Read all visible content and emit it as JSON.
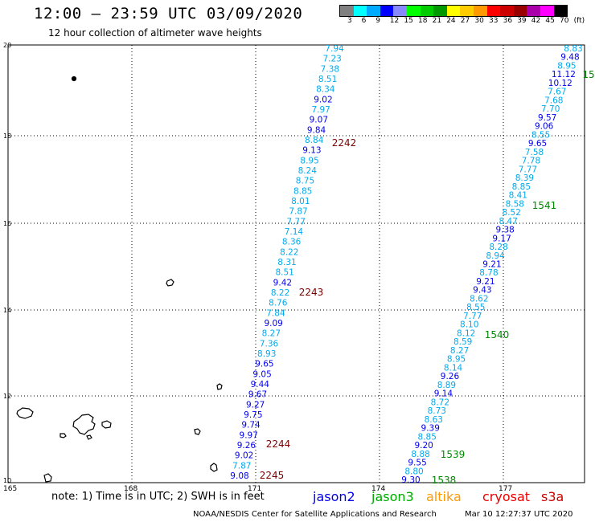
{
  "header": {
    "title": "12:00 – 23:59 UTC 03/09/2020",
    "subtitle": "12 hour collection of altimeter wave heights"
  },
  "legend": {
    "labels": [
      "3",
      "6",
      "9",
      "12",
      "15",
      "18",
      "21",
      "24",
      "27",
      "30",
      "33",
      "36",
      "39",
      "42",
      "45",
      "70",
      "(ft)"
    ],
    "colors": [
      "#808080",
      "#00ffff",
      "#00aaff",
      "#0000ff",
      "#8888ff",
      "#00ff00",
      "#00cc00",
      "#009900",
      "#ffff00",
      "#ffcc00",
      "#ff9900",
      "#ff0000",
      "#cc0000",
      "#990000",
      "#aa00aa",
      "#ff00ff",
      "#000000"
    ]
  },
  "axes": {
    "x_ticks": [
      "165",
      "168",
      "171",
      "174",
      "177"
    ],
    "y_ticks": [
      "20",
      "18",
      "16",
      "14",
      "12",
      "10"
    ]
  },
  "track_colors": {
    "cyan": "#00aaee",
    "blue": "#0000ee"
  },
  "track_left": [
    {
      "v": "7.94",
      "c": "cyan"
    },
    {
      "v": "7.23",
      "c": "cyan"
    },
    {
      "v": "7.38",
      "c": "cyan"
    },
    {
      "v": "8.51",
      "c": "cyan"
    },
    {
      "v": "8.34",
      "c": "cyan"
    },
    {
      "v": "9.02",
      "c": "blue"
    },
    {
      "v": "7.97",
      "c": "cyan"
    },
    {
      "v": "9.07",
      "c": "blue"
    },
    {
      "v": "9.84",
      "c": "blue"
    },
    {
      "v": "8.84",
      "c": "cyan"
    },
    {
      "v": "9.13",
      "c": "blue"
    },
    {
      "v": "8.95",
      "c": "cyan"
    },
    {
      "v": "8.24",
      "c": "cyan"
    },
    {
      "v": "8.75",
      "c": "cyan"
    },
    {
      "v": "8.85",
      "c": "cyan"
    },
    {
      "v": "8.01",
      "c": "cyan"
    },
    {
      "v": "7.87",
      "c": "cyan"
    },
    {
      "v": "7.77",
      "c": "cyan"
    },
    {
      "v": "7.14",
      "c": "cyan"
    },
    {
      "v": "8.36",
      "c": "cyan"
    },
    {
      "v": "8.22",
      "c": "cyan"
    },
    {
      "v": "8.31",
      "c": "cyan"
    },
    {
      "v": "8.51",
      "c": "cyan"
    },
    {
      "v": "9.42",
      "c": "blue"
    },
    {
      "v": "8.22",
      "c": "cyan"
    },
    {
      "v": "8.76",
      "c": "cyan"
    },
    {
      "v": "7.84",
      "c": "cyan"
    },
    {
      "v": "9.09",
      "c": "blue"
    },
    {
      "v": "8.27",
      "c": "cyan"
    },
    {
      "v": "7.36",
      "c": "cyan"
    },
    {
      "v": "8.93",
      "c": "cyan"
    },
    {
      "v": "9.65",
      "c": "blue"
    },
    {
      "v": "9.05",
      "c": "blue"
    },
    {
      "v": "9.44",
      "c": "blue"
    },
    {
      "v": "9.67",
      "c": "blue"
    },
    {
      "v": "9.27",
      "c": "blue"
    },
    {
      "v": "9.75",
      "c": "blue"
    },
    {
      "v": "9.74",
      "c": "blue"
    },
    {
      "v": "9.97",
      "c": "blue"
    },
    {
      "v": "9.26",
      "c": "blue"
    },
    {
      "v": "9.02",
      "c": "blue"
    },
    {
      "v": "7.87",
      "c": "cyan"
    },
    {
      "v": "9.08",
      "c": "blue"
    }
  ],
  "track_right": [
    {
      "v": "8.83",
      "c": "cyan"
    },
    {
      "v": "9.48",
      "c": "blue"
    },
    {
      "v": "8.95",
      "c": "cyan"
    },
    {
      "v": "11.12",
      "c": "blue"
    },
    {
      "v": "10.12",
      "c": "blue"
    },
    {
      "v": "7.67",
      "c": "cyan"
    },
    {
      "v": "7.68",
      "c": "cyan"
    },
    {
      "v": "7.70",
      "c": "cyan"
    },
    {
      "v": "9.57",
      "c": "blue"
    },
    {
      "v": "9.06",
      "c": "blue"
    },
    {
      "v": "8.55",
      "c": "cyan"
    },
    {
      "v": "9.65",
      "c": "blue"
    },
    {
      "v": "7.58",
      "c": "cyan"
    },
    {
      "v": "7.78",
      "c": "cyan"
    },
    {
      "v": "7.77",
      "c": "cyan"
    },
    {
      "v": "8.39",
      "c": "cyan"
    },
    {
      "v": "8.85",
      "c": "cyan"
    },
    {
      "v": "8.41",
      "c": "cyan"
    },
    {
      "v": "8.58",
      "c": "cyan"
    },
    {
      "v": "8.52",
      "c": "cyan"
    },
    {
      "v": "8.47",
      "c": "cyan"
    },
    {
      "v": "9.38",
      "c": "blue"
    },
    {
      "v": "9.17",
      "c": "blue"
    },
    {
      "v": "8.28",
      "c": "cyan"
    },
    {
      "v": "8.94",
      "c": "cyan"
    },
    {
      "v": "9.21",
      "c": "blue"
    },
    {
      "v": "8.78",
      "c": "cyan"
    },
    {
      "v": "9.21",
      "c": "blue"
    },
    {
      "v": "9.43",
      "c": "blue"
    },
    {
      "v": "8.62",
      "c": "cyan"
    },
    {
      "v": "8.55",
      "c": "cyan"
    },
    {
      "v": "7.77",
      "c": "cyan"
    },
    {
      "v": "8.10",
      "c": "cyan"
    },
    {
      "v": "8.12",
      "c": "cyan"
    },
    {
      "v": "8.59",
      "c": "cyan"
    },
    {
      "v": "8.27",
      "c": "cyan"
    },
    {
      "v": "8.95",
      "c": "cyan"
    },
    {
      "v": "8.14",
      "c": "cyan"
    },
    {
      "v": "9.26",
      "c": "blue"
    },
    {
      "v": "8.89",
      "c": "cyan"
    },
    {
      "v": "9.14",
      "c": "blue"
    },
    {
      "v": "8.72",
      "c": "cyan"
    },
    {
      "v": "8.73",
      "c": "cyan"
    },
    {
      "v": "8.63",
      "c": "cyan"
    },
    {
      "v": "9.39",
      "c": "blue"
    },
    {
      "v": "8.85",
      "c": "cyan"
    },
    {
      "v": "9.20",
      "c": "blue"
    },
    {
      "v": "8.88",
      "c": "cyan"
    },
    {
      "v": "9.55",
      "c": "blue"
    },
    {
      "v": "8.80",
      "c": "cyan"
    },
    {
      "v": "9.30",
      "c": "blue"
    }
  ],
  "time_labels": [
    {
      "t": "2242",
      "c": "#7a0000"
    },
    {
      "t": "2243",
      "c": "#7a0000"
    },
    {
      "t": "2244",
      "c": "#7a0000"
    },
    {
      "t": "2245",
      "c": "#7a0000"
    },
    {
      "t": "15",
      "c": "#008800"
    },
    {
      "t": "1541",
      "c": "#008800"
    },
    {
      "t": "1540",
      "c": "#008800"
    },
    {
      "t": "1539",
      "c": "#008800"
    },
    {
      "t": "1538",
      "c": "#008800"
    }
  ],
  "footer": {
    "note": "note: 1) Time is in UTC; 2) SWH is in feet",
    "sat1": "jason2",
    "sat2": "jason3",
    "sat3": "altika",
    "sat4": "cryosat",
    "sat5": "s3a",
    "credit_left": "NOAA/NESDIS Center for Satellite Applications and Research",
    "credit_right": "Mar 10 12:27:37 UTC 2020"
  },
  "footer_colors": {
    "sat1": "#0000ee",
    "sat2": "#00aa00",
    "sat3": "#ff9900",
    "sat4": "#ee0000",
    "sat5": "#cc0000"
  }
}
